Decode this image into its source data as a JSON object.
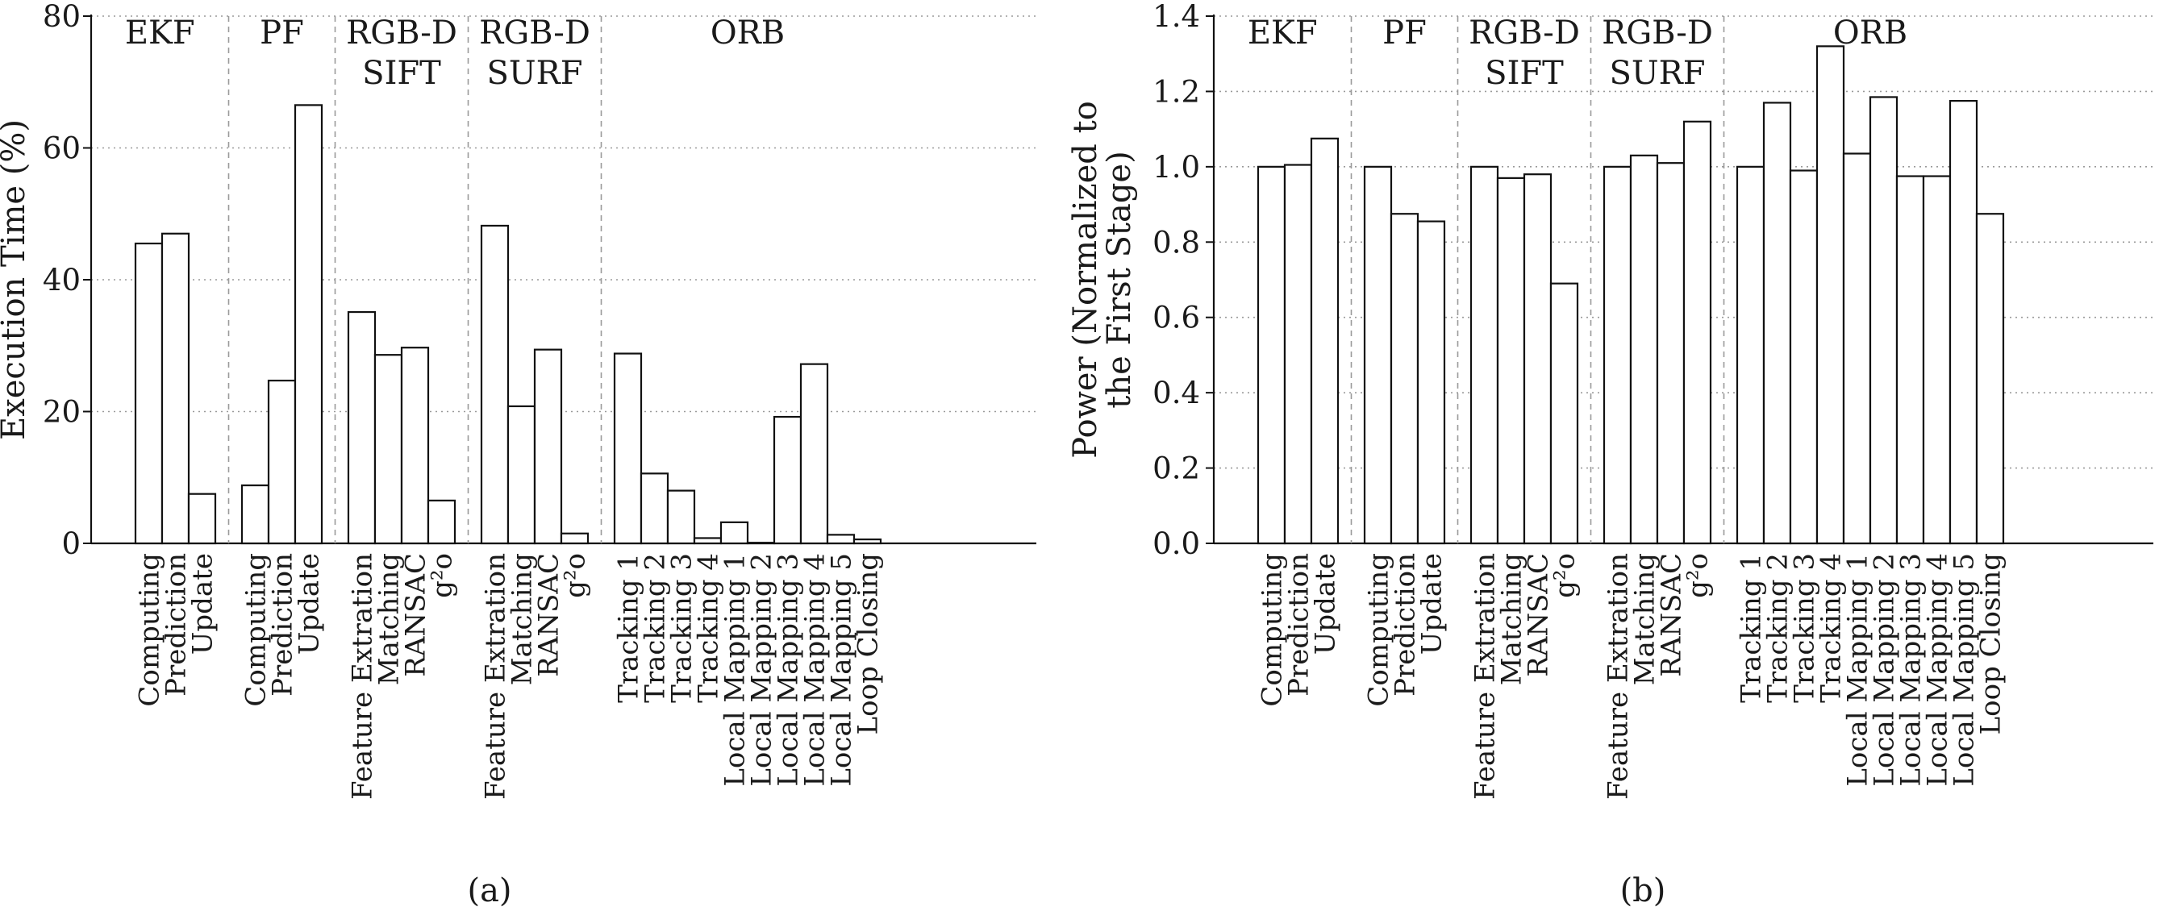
{
  "chart_data": [
    {
      "type": "bar",
      "ylabel": "Execution Time (%)",
      "ylim": [
        0,
        80
      ],
      "yticks": [
        "0",
        "20",
        "40",
        "60",
        "80"
      ],
      "grid": "horizontal dotted",
      "caption": "(a)",
      "groups": [
        {
          "name": "EKF",
          "lines": [
            "EKF"
          ],
          "categories": [
            "Computing",
            "Prediction",
            "Update"
          ],
          "values": [
            45.5,
            47,
            7.5
          ]
        },
        {
          "name": "PF",
          "lines": [
            "PF"
          ],
          "categories": [
            "Computing",
            "Prediction",
            "Update"
          ],
          "values": [
            8.8,
            24.7,
            66.5
          ]
        },
        {
          "name": "RGB-D SIFT",
          "lines": [
            "RGB-D",
            "SIFT"
          ],
          "categories": [
            "Feature Extration",
            "Matching",
            "RANSAC",
            "g²o"
          ],
          "values": [
            35.1,
            28.6,
            29.7,
            6.5
          ]
        },
        {
          "name": "RGB-D SURF",
          "lines": [
            "RGB-D",
            "SURF"
          ],
          "categories": [
            "Feature Extration",
            "Matching",
            "RANSAC",
            "g²o"
          ],
          "values": [
            48.2,
            20.8,
            29.4,
            1.5
          ]
        },
        {
          "name": "ORB",
          "lines": [
            "ORB"
          ],
          "categories": [
            "Tracking 1",
            "Tracking 2",
            "Tracking 3",
            "Tracking 4",
            "Local Mapping 1",
            "Local Mapping 2",
            "Local Mapping 3",
            "Local Mapping 4",
            "Local Mapping 5",
            "Loop Closing"
          ],
          "values": [
            28.8,
            10.6,
            8.0,
            0.8,
            3.2,
            0.1,
            19.2,
            27.2,
            1.3,
            0.6
          ]
        }
      ]
    },
    {
      "type": "bar",
      "ylabel": "Power (Normalized to the First Stage)",
      "ylabel_lines": [
        "Power (Normalized to",
        "the First Stage)"
      ],
      "ylim": [
        0,
        1.4
      ],
      "yticks": [
        "0.0",
        "0.2",
        "0.4",
        "0.6",
        "0.8",
        "1.0",
        "1.2",
        "1.4"
      ],
      "grid": "horizontal dotted",
      "caption": "(b)",
      "groups": [
        {
          "name": "EKF",
          "lines": [
            "EKF"
          ],
          "categories": [
            "Computing",
            "Prediction",
            "Update"
          ],
          "values": [
            1.0,
            1.005,
            1.075
          ]
        },
        {
          "name": "PF",
          "lines": [
            "PF"
          ],
          "categories": [
            "Computing",
            "Prediction",
            "Update"
          ],
          "values": [
            1.0,
            0.875,
            0.855
          ]
        },
        {
          "name": "RGB-D SIFT",
          "lines": [
            "RGB-D",
            "SIFT"
          ],
          "categories": [
            "Feature Extration",
            "Matching",
            "RANSAC",
            "g²o"
          ],
          "values": [
            1.0,
            0.97,
            0.98,
            0.69
          ]
        },
        {
          "name": "RGB-D SURF",
          "lines": [
            "RGB-D",
            "SURF"
          ],
          "categories": [
            "Feature Extration",
            "Matching",
            "RANSAC",
            "g²o"
          ],
          "values": [
            1.0,
            1.03,
            1.01,
            1.12
          ]
        },
        {
          "name": "ORB",
          "lines": [
            "ORB"
          ],
          "categories": [
            "Tracking 1",
            "Tracking 2",
            "Tracking 3",
            "Tracking 4",
            "Local Mapping 1",
            "Local Mapping 2",
            "Local Mapping 3",
            "Local Mapping 4",
            "Local Mapping 5",
            "Loop Closing"
          ],
          "values": [
            1.0,
            1.17,
            0.99,
            1.32,
            1.035,
            1.185,
            0.975,
            0.975,
            1.175,
            0.875
          ]
        }
      ]
    }
  ]
}
